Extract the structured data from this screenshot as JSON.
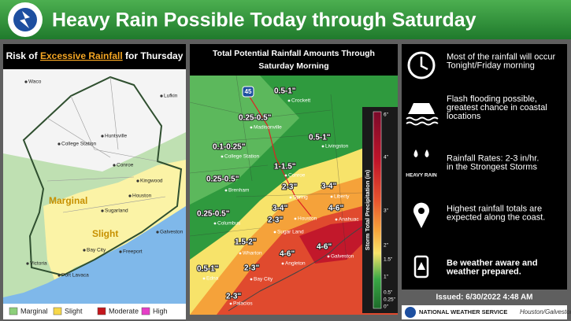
{
  "header": {
    "title": "Heavy Rain Possible Today through Saturday"
  },
  "risk_map": {
    "title_prefix": "Risk of",
    "title_highlight": "Excessive Rainfall",
    "title_suffix": "for Thursday",
    "places": [
      "Waco",
      "Lufkin",
      "Huntsville",
      "College Station",
      "Conroe",
      "Kingwood",
      "Houston",
      "Sugarland",
      "Galveston",
      "Bay City",
      "Freeport",
      "Victoria",
      "Port Lavaca"
    ],
    "areas": [
      "Marginal",
      "Slight"
    ],
    "legend": [
      "Marginal",
      "Slight",
      "Moderate",
      "High"
    ]
  },
  "rainfall_map": {
    "title_lines": [
      "Total Potential Rainfall Amounts Through",
      "Saturday Morning"
    ],
    "highway": "45",
    "amounts": [
      "0.5-1\"",
      "0.25-0.5\"",
      "0.5-1\"",
      "0.1-0.25\"",
      "1-1.5\"",
      "0.25-0.5\"",
      "2-3\"",
      "3-4\"",
      "0.25-0.5\"",
      "3-4\"",
      "4-6\"",
      "2-3\"",
      "1.5-2\"",
      "4-6\"",
      "4-6\"",
      "0.5-1\"",
      "2-3\"",
      "2-3\""
    ],
    "places": [
      "Crockett",
      "Madisonville",
      "Livingston",
      "College Station",
      "Brenham",
      "Conroe",
      "Spring",
      "Liberty",
      "Columbus",
      "Houston",
      "Anahuac",
      "Sugar Land",
      "Wharton",
      "Angleton",
      "Galveston",
      "Edna",
      "Bay City",
      "Palacios"
    ],
    "scale_title": "Storm Total Precipitation (in)",
    "scale_labels": [
      "6\"",
      "4\"",
      "3\"",
      "2\"",
      "1.5\"",
      "1\"",
      "0.5\"",
      "0.25\"",
      "0\""
    ]
  },
  "key_messages": [
    {
      "lines": [
        "Most of the rainfall will occur",
        "Tonight/Friday morning"
      ]
    },
    {
      "lines": [
        "Flash flooding possible,",
        "greatest chance in coastal",
        "locations"
      ]
    },
    {
      "lines": [
        "Rainfall Rates: 2-3 in/hr.",
        "in the Strongest Storms"
      ]
    },
    {
      "lines": [
        "Highest rainfall totals are",
        "expected along the coast."
      ]
    },
    {
      "lines": [
        "Be weather aware and",
        "weather prepared."
      ]
    }
  ],
  "heavy_rain_icon_label": "HEAVY RAIN",
  "issued": "Issued: 6/30/2022 4:48 AM",
  "footer": {
    "agency": "NATIONAL WEATHER SERVICE",
    "office": "Houston/Galveston"
  }
}
